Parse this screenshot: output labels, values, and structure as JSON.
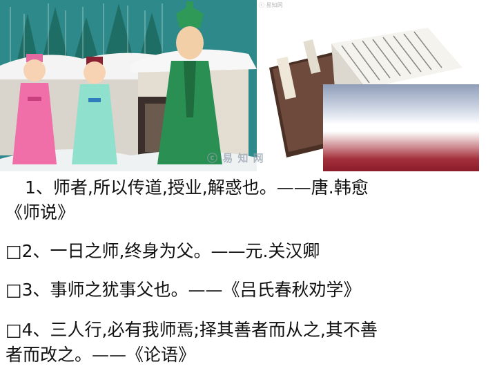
{
  "watermark": {
    "center": "ⓒ 易 知 网",
    "top": "ⓒ 易知网"
  },
  "quotes": [
    {
      "number_text": "1、师者,所以传道,授业,解惑也。——唐.韩愈",
      "continuation": "《师说》"
    },
    {
      "text": "2、一日之师,终身为父。——元.关汉卿"
    },
    {
      "text": "3、事师之犹事父也。——《吕氏春秋劝学》"
    },
    {
      "line1": "4、三人行,必有我师焉;择其善者而从之,其不善",
      "line2": "者而改之。——《论语》"
    }
  ],
  "bullet_glyph": "□",
  "colors": {
    "sky": "#2e8a8a",
    "snow": "#f4f4f4",
    "gradient_top": "#8f9db8",
    "gradient_bottom": "#8a1c2a"
  }
}
